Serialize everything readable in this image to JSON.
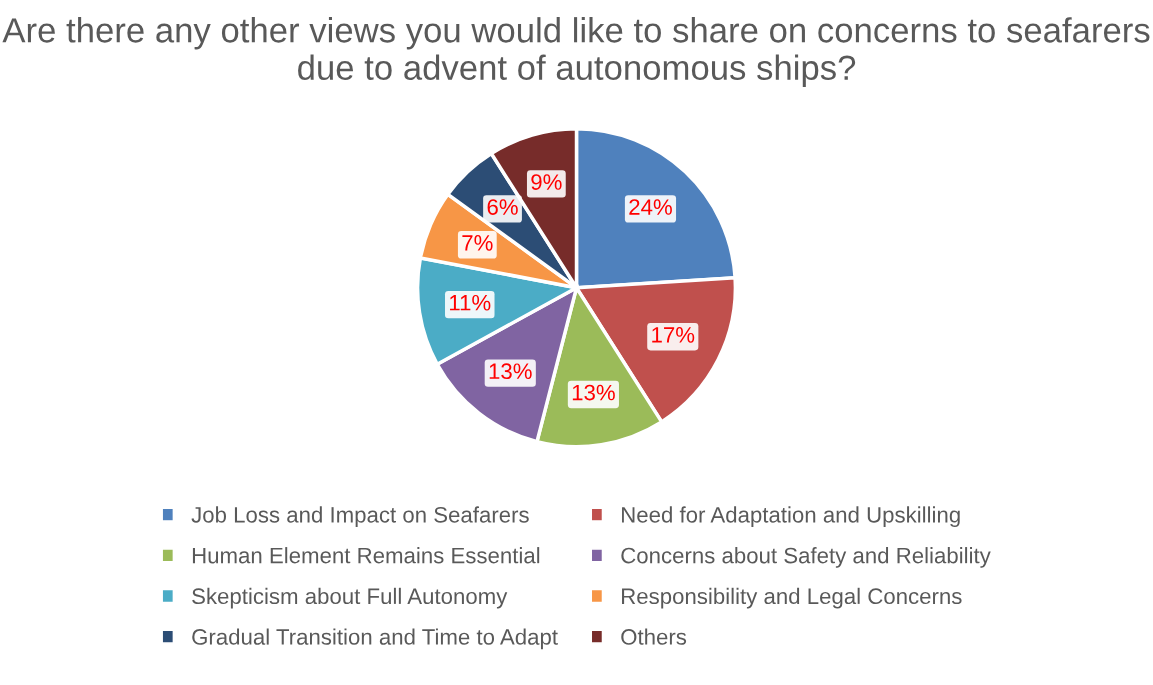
{
  "chart_data": {
    "type": "pie",
    "title": "Are there any other views you would like to share on concerns to seafarers due to advent of autonomous ships?",
    "categories": [
      "Job Loss and Impact on Seafarers",
      "Need for Adaptation and Upskilling",
      "Human Element Remains Essential",
      "Concerns about Safety and Reliability",
      "Skepticism about Full Autonomy",
      "Responsibility and Legal Concerns",
      "Gradual Transition and Time to Adapt",
      "Others"
    ],
    "values": [
      24,
      17,
      13,
      13,
      11,
      7,
      6,
      9
    ],
    "value_labels": [
      "24%",
      "17%",
      "13%",
      "13%",
      "11%",
      "7%",
      "6%",
      "9%"
    ],
    "colors": [
      "#4f81bd",
      "#c0504d",
      "#9bbb59",
      "#8064a2",
      "#4bacc6",
      "#f79646",
      "#2c4d75",
      "#772c2a"
    ],
    "legend": "bottom"
  }
}
